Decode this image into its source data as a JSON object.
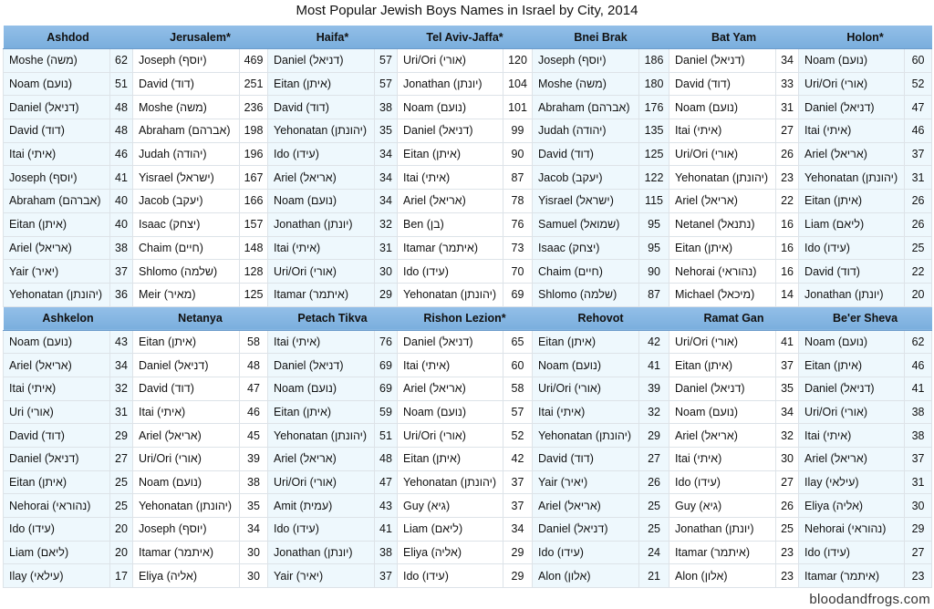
{
  "title": "Most Popular Jewish Boys Names in Israel by City, 2014",
  "credit": "bloodandfrogs.com",
  "colors": {
    "header": "#7aaedd",
    "alt_column": "#eef8fd"
  },
  "chart_data": {
    "type": "table",
    "title": "Most Popular Jewish Boys Names in Israel by City, 2014",
    "groups": [
      {
        "cities": [
          {
            "city": "Ashdod",
            "rows": [
              [
                "Moshe (משה)",
                62
              ],
              [
                "Noam (נועם)",
                51
              ],
              [
                "Daniel (דניאל)",
                48
              ],
              [
                "David (דוד)",
                48
              ],
              [
                "Itai (איתי)",
                46
              ],
              [
                "Joseph (יוסף)",
                41
              ],
              [
                "Abraham (אברהם)",
                40
              ],
              [
                "Eitan (איתן)",
                40
              ],
              [
                "Ariel (אריאל)",
                38
              ],
              [
                "Yair (יאיר)",
                37
              ],
              [
                "Yehonatan (יהונתן)",
                36
              ]
            ]
          },
          {
            "city": "Jerusalem*",
            "rows": [
              [
                "Joseph (יוסף)",
                469
              ],
              [
                "David (דוד)",
                251
              ],
              [
                "Moshe (משה)",
                236
              ],
              [
                "Abraham (אברהם)",
                198
              ],
              [
                "Judah (יהודה)",
                196
              ],
              [
                "Yisrael (ישראל)",
                167
              ],
              [
                "Jacob (יעקב)",
                166
              ],
              [
                "Isaac (יצחק)",
                157
              ],
              [
                "Chaim (חיים)",
                148
              ],
              [
                "Shlomo (שלמה)",
                128
              ],
              [
                "Meir (מאיר)",
                125
              ]
            ]
          },
          {
            "city": "Haifa*",
            "rows": [
              [
                "Daniel (דניאל)",
                57
              ],
              [
                "Eitan (איתן)",
                57
              ],
              [
                "David (דוד)",
                38
              ],
              [
                "Yehonatan (יהונתן)",
                35
              ],
              [
                "Ido (עידו)",
                34
              ],
              [
                "Ariel (אריאל)",
                34
              ],
              [
                "Noam (נועם)",
                34
              ],
              [
                "Jonathan (יונתן)",
                32
              ],
              [
                "Itai (איתי)",
                31
              ],
              [
                "Uri/Ori (אורי)",
                30
              ],
              [
                "Itamar (איתמר)",
                29
              ]
            ]
          },
          {
            "city": "Tel Aviv-Jaffa*",
            "rows": [
              [
                "Uri/Ori (אורי)",
                120
              ],
              [
                "Jonathan (יונתן)",
                104
              ],
              [
                "Noam (נועם)",
                101
              ],
              [
                "Daniel (דניאל)",
                99
              ],
              [
                "Eitan (איתן)",
                90
              ],
              [
                "Itai (איתי)",
                87
              ],
              [
                "Ariel (אריאל)",
                78
              ],
              [
                "Ben (בן)",
                76
              ],
              [
                "Itamar (איתמר)",
                73
              ],
              [
                "Ido (עידו)",
                70
              ],
              [
                "Yehonatan (יהונתן)",
                69
              ]
            ]
          },
          {
            "city": "Bnei Brak",
            "rows": [
              [
                "Joseph (יוסף)",
                186
              ],
              [
                "Moshe (משה)",
                180
              ],
              [
                "Abraham (אברהם)",
                176
              ],
              [
                "Judah (יהודה)",
                135
              ],
              [
                "David (דוד)",
                125
              ],
              [
                "Jacob (יעקב)",
                122
              ],
              [
                "Yisrael (ישראל)",
                115
              ],
              [
                "Samuel (שמואל)",
                95
              ],
              [
                "Isaac (יצחק)",
                95
              ],
              [
                "Chaim (חיים)",
                90
              ],
              [
                "Shlomo (שלמה)",
                87
              ]
            ]
          },
          {
            "city": "Bat Yam",
            "rows": [
              [
                "Daniel (דניאל)",
                34
              ],
              [
                "David (דוד)",
                33
              ],
              [
                "Noam (נועם)",
                31
              ],
              [
                "Itai (איתי)",
                27
              ],
              [
                "Uri/Ori (אורי)",
                26
              ],
              [
                "Yehonatan (יהונתן)",
                23
              ],
              [
                "Ariel (אריאל)",
                22
              ],
              [
                "Netanel (נתנאל)",
                16
              ],
              [
                "Eitan (איתן)",
                16
              ],
              [
                "Nehorai (נהוראי)",
                16
              ],
              [
                "Michael (מיכאל)",
                14
              ]
            ]
          },
          {
            "city": "Holon*",
            "rows": [
              [
                "Noam (נועם)",
                60
              ],
              [
                "Uri/Ori (אורי)",
                52
              ],
              [
                "Daniel (דניאל)",
                47
              ],
              [
                "Itai (איתי)",
                46
              ],
              [
                "Ariel (אריאל)",
                37
              ],
              [
                "Yehonatan (יהונתן)",
                31
              ],
              [
                "Eitan (איתן)",
                26
              ],
              [
                "Liam (ליאם)",
                26
              ],
              [
                "Ido (עידו)",
                25
              ],
              [
                "David (דוד)",
                22
              ],
              [
                "Jonathan (יונתן)",
                20
              ]
            ]
          }
        ]
      },
      {
        "cities": [
          {
            "city": "Ashkelon",
            "rows": [
              [
                "Noam (נועם)",
                43
              ],
              [
                "Ariel (אריאל)",
                34
              ],
              [
                "Itai (איתי)",
                32
              ],
              [
                "Uri (אורי)",
                31
              ],
              [
                "David (דוד)",
                29
              ],
              [
                "Daniel (דניאל)",
                27
              ],
              [
                "Eitan (איתן)",
                25
              ],
              [
                "Nehorai (נהוראי)",
                25
              ],
              [
                "Ido (עידו)",
                20
              ],
              [
                "Liam (ליאם)",
                20
              ],
              [
                "Ilay (עילאי)",
                17
              ]
            ]
          },
          {
            "city": "Netanya",
            "rows": [
              [
                "Eitan (איתן)",
                58
              ],
              [
                "Daniel (דניאל)",
                48
              ],
              [
                "David (דוד)",
                47
              ],
              [
                "Itai (איתי)",
                46
              ],
              [
                "Ariel (אריאל)",
                45
              ],
              [
                "Uri/Ori (אורי)",
                39
              ],
              [
                "Noam (נועם)",
                38
              ],
              [
                "Yehonatan (יהונתן)",
                35
              ],
              [
                "Joseph (יוסף)",
                34
              ],
              [
                "Itamar (איתמר)",
                30
              ],
              [
                "Eliya (אליה)",
                30
              ]
            ]
          },
          {
            "city": "Petach Tikva",
            "rows": [
              [
                "Itai (איתי)",
                76
              ],
              [
                "Daniel (דניאל)",
                69
              ],
              [
                "Noam (נועם)",
                69
              ],
              [
                "Eitan (איתן)",
                59
              ],
              [
                "Yehonatan (יהונתן)",
                51
              ],
              [
                "Ariel (אריאל)",
                48
              ],
              [
                "Uri/Ori (אורי)",
                47
              ],
              [
                "Amit (עמית)",
                43
              ],
              [
                "Ido (עידו)",
                41
              ],
              [
                "Jonathan (יונתן)",
                38
              ],
              [
                "Yair (יאיר)",
                37
              ]
            ]
          },
          {
            "city": "Rishon Lezion*",
            "rows": [
              [
                "Daniel (דניאל)",
                65
              ],
              [
                "Itai (איתי)",
                60
              ],
              [
                "Ariel (אריאל)",
                58
              ],
              [
                "Noam (נועם)",
                57
              ],
              [
                "Uri/Ori (אורי)",
                52
              ],
              [
                "Eitan (איתן)",
                42
              ],
              [
                "Yehonatan (יהונתן)",
                37
              ],
              [
                "Guy (גיא)",
                37
              ],
              [
                "Liam (ליאם)",
                34
              ],
              [
                "Eliya (אליה)",
                29
              ],
              [
                "Ido (עידו)",
                29
              ]
            ]
          },
          {
            "city": "Rehovot",
            "rows": [
              [
                "Eitan (איתן)",
                42
              ],
              [
                "Noam (נועם)",
                41
              ],
              [
                "Uri/Ori (אורי)",
                39
              ],
              [
                "Itai (איתי)",
                32
              ],
              [
                "Yehonatan (יהונתן)",
                29
              ],
              [
                "David (דוד)",
                27
              ],
              [
                "Yair (יאיר)",
                26
              ],
              [
                "Ariel (אריאל)",
                25
              ],
              [
                "Daniel (דניאל)",
                25
              ],
              [
                "Ido (עידו)",
                24
              ],
              [
                "Alon (אלון)",
                21
              ]
            ]
          },
          {
            "city": "Ramat Gan",
            "rows": [
              [
                "Uri/Ori (אורי)",
                41
              ],
              [
                "Eitan (איתן)",
                37
              ],
              [
                "Daniel (דניאל)",
                35
              ],
              [
                "Noam (נועם)",
                34
              ],
              [
                "Ariel (אריאל)",
                32
              ],
              [
                "Itai (איתי)",
                30
              ],
              [
                "Ido (עידו)",
                27
              ],
              [
                "Guy (גיא)",
                26
              ],
              [
                "Jonathan (יונתן)",
                25
              ],
              [
                "Itamar (איתמר)",
                23
              ],
              [
                "Alon (אלון)",
                23
              ]
            ]
          },
          {
            "city": "Be'er Sheva",
            "rows": [
              [
                "Noam (נועם)",
                62
              ],
              [
                "Eitan (איתן)",
                46
              ],
              [
                "Daniel (דניאל)",
                41
              ],
              [
                "Uri/Ori (אורי)",
                38
              ],
              [
                "Itai (איתי)",
                38
              ],
              [
                "Ariel (אריאל)",
                37
              ],
              [
                "Ilay (עילאי)",
                31
              ],
              [
                "Eliya (אליה)",
                30
              ],
              [
                "Nehorai (נהוראי)",
                29
              ],
              [
                "Ido (עידו)",
                27
              ],
              [
                "Itamar (איתמר)",
                23
              ]
            ]
          }
        ]
      }
    ]
  }
}
